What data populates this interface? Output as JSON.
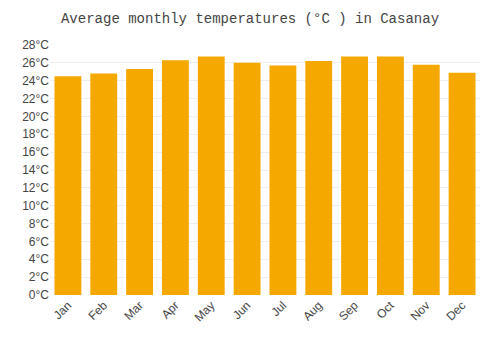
{
  "chart_data": {
    "type": "bar",
    "title": "Average monthly temperatures (°C ) in Casanay",
    "categories": [
      "Jan",
      "Feb",
      "Mar",
      "Apr",
      "May",
      "Jun",
      "Jul",
      "Aug",
      "Sep",
      "Oct",
      "Nov",
      "Dec"
    ],
    "values": [
      24.5,
      24.8,
      25.3,
      26.3,
      26.7,
      26.0,
      25.7,
      26.2,
      26.7,
      26.7,
      25.8,
      24.9
    ],
    "color": "#F5A800",
    "ylim": [
      0,
      28
    ],
    "yticks": [
      {
        "value": 0,
        "label": "0°C"
      },
      {
        "value": 2,
        "label": "2°C"
      },
      {
        "value": 4,
        "label": "4°C"
      },
      {
        "value": 6,
        "label": "6°C"
      },
      {
        "value": 8,
        "label": "8°C"
      },
      {
        "value": 10,
        "label": "10°C"
      },
      {
        "value": 12,
        "label": "12°C"
      },
      {
        "value": 14,
        "label": "14°C"
      },
      {
        "value": 16,
        "label": "16°C"
      },
      {
        "value": 18,
        "label": "18°C"
      },
      {
        "value": 20,
        "label": "20°C"
      },
      {
        "value": 22,
        "label": "22°C"
      },
      {
        "value": 24,
        "label": "24°C"
      },
      {
        "value": 26,
        "label": "26°C"
      },
      {
        "value": 28,
        "label": "28°C"
      }
    ],
    "grid": true
  }
}
